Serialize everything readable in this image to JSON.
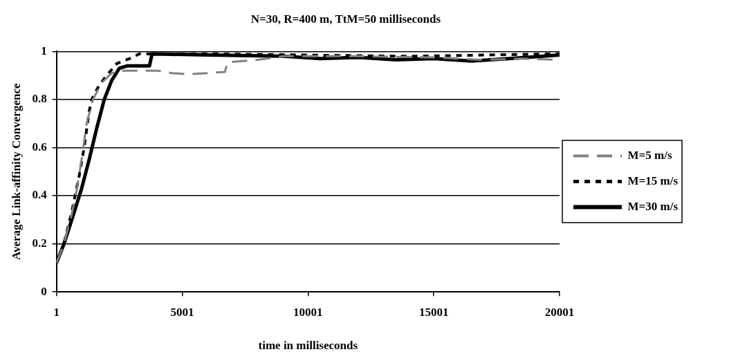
{
  "chart_data": {
    "type": "line",
    "title": "N=30, R=400 m, TtM=50 milliseconds",
    "xlabel": "time in milliseconds",
    "ylabel": "Average Link-affinity Convergence",
    "xlim": [
      1,
      20001
    ],
    "xticks": [
      1,
      5001,
      10001,
      15001,
      20001
    ],
    "ylim": [
      0,
      1
    ],
    "yticks": [
      0,
      0.2,
      0.4,
      0.6,
      0.8,
      1
    ],
    "grid": "y",
    "legend": "right",
    "marker": "none",
    "series": [
      {
        "name": "M=5 m/s",
        "color": "#808080",
        "line_style": "dashed",
        "x": [
          1,
          300,
          600,
          800,
          1000,
          1200,
          1450,
          1800,
          2200,
          2600,
          4000,
          4600,
          5200,
          6000,
          6700,
          6800,
          8000,
          9000,
          12000,
          15000,
          17000,
          18500,
          20001
        ],
        "values": [
          0.12,
          0.2,
          0.32,
          0.42,
          0.55,
          0.7,
          0.8,
          0.87,
          0.91,
          0.92,
          0.92,
          0.91,
          0.905,
          0.91,
          0.915,
          0.955,
          0.965,
          0.98,
          0.98,
          0.975,
          0.965,
          0.97,
          0.965
        ]
      },
      {
        "name": "M=15 m/s",
        "color": "#000000",
        "line_style": "dotted",
        "x": [
          1,
          300,
          600,
          900,
          1100,
          1300,
          1400,
          1700,
          2000,
          2400,
          2900,
          3300,
          6000,
          10000,
          14000,
          17000,
          20001
        ],
        "values": [
          0.12,
          0.2,
          0.33,
          0.48,
          0.6,
          0.75,
          0.8,
          0.86,
          0.9,
          0.95,
          0.97,
          0.99,
          0.99,
          0.985,
          0.98,
          0.985,
          0.99
        ]
      },
      {
        "name": "M=30 m/s",
        "color": "#000000",
        "line_style": "solid",
        "x": [
          1,
          300,
          700,
          1000,
          1300,
          1600,
          1900,
          2200,
          2500,
          2800,
          3700,
          3800,
          6000,
          9000,
          10500,
          12000,
          13500,
          15000,
          16500,
          18000,
          20001
        ],
        "values": [
          0.12,
          0.2,
          0.33,
          0.43,
          0.55,
          0.68,
          0.8,
          0.88,
          0.93,
          0.94,
          0.94,
          0.99,
          0.985,
          0.98,
          0.97,
          0.975,
          0.965,
          0.97,
          0.96,
          0.97,
          0.985
        ]
      }
    ]
  }
}
